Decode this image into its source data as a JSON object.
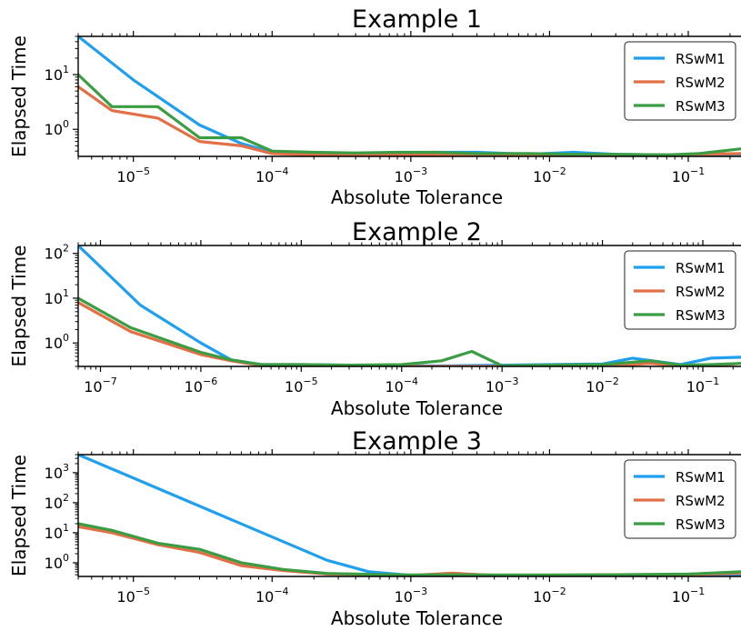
{
  "chart_data": [
    {
      "type": "line",
      "title": "Example 1",
      "xlabel": "Absolute Tolerance",
      "ylabel": "Elapsed Time",
      "xscale": "log",
      "yscale": "log",
      "xlim": [
        4e-06,
        0.24
      ],
      "ylim": [
        0.32,
        50
      ],
      "xticks": [
        {
          "value": 1e-05,
          "mant": "10",
          "exp": "−5"
        },
        {
          "value": 0.0001,
          "mant": "10",
          "exp": "−4"
        },
        {
          "value": 0.001,
          "mant": "10",
          "exp": "−3"
        },
        {
          "value": 0.01,
          "mant": "10",
          "exp": "−2"
        },
        {
          "value": 0.1,
          "mant": "10",
          "exp": "−1"
        }
      ],
      "yticks": [
        {
          "value": 1,
          "mant": "10",
          "exp": "0"
        },
        {
          "value": 10,
          "mant": "10",
          "exp": "1"
        }
      ],
      "legend_position": "top-right",
      "grid": false,
      "series": [
        {
          "name": "RSwM1",
          "color": "#1f9fef",
          "x": [
            4e-06,
            1e-05,
            3e-05,
            6e-05,
            0.0001,
            0.0002,
            0.0004,
            0.0008,
            0.0015,
            0.003,
            0.007,
            0.015,
            0.03,
            0.07,
            0.24
          ],
          "y": [
            50,
            8,
            1.2,
            0.55,
            0.38,
            0.36,
            0.36,
            0.37,
            0.38,
            0.38,
            0.35,
            0.38,
            0.35,
            0.34,
            0.35
          ]
        },
        {
          "name": "RSwM2",
          "color": "#e36f47",
          "x": [
            4e-06,
            7e-06,
            1.5e-05,
            3e-05,
            6e-05,
            0.0001,
            0.0002,
            0.0004,
            0.0008,
            0.0015,
            0.003,
            0.007,
            0.015,
            0.03,
            0.07,
            0.24
          ],
          "y": [
            6,
            2.2,
            1.6,
            0.6,
            0.5,
            0.36,
            0.34,
            0.34,
            0.34,
            0.34,
            0.34,
            0.34,
            0.34,
            0.34,
            0.34,
            0.36
          ]
        },
        {
          "name": "RSwM3",
          "color": "#3a9d43",
          "x": [
            4e-06,
            7e-06,
            1.5e-05,
            3e-05,
            6e-05,
            0.0001,
            0.0002,
            0.0004,
            0.0008,
            0.0015,
            0.003,
            0.007,
            0.015,
            0.03,
            0.07,
            0.12,
            0.24
          ],
          "y": [
            10,
            2.6,
            2.6,
            0.7,
            0.7,
            0.4,
            0.38,
            0.37,
            0.38,
            0.38,
            0.36,
            0.36,
            0.35,
            0.35,
            0.34,
            0.36,
            0.44
          ]
        }
      ]
    },
    {
      "type": "line",
      "title": "Example 2",
      "xlabel": "Absolute Tolerance",
      "ylabel": "Elapsed Time",
      "xscale": "log",
      "yscale": "log",
      "xlim": [
        6e-08,
        0.24
      ],
      "ylim": [
        0.3,
        150
      ],
      "xticks": [
        {
          "value": 1e-07,
          "mant": "10",
          "exp": "−7"
        },
        {
          "value": 1e-06,
          "mant": "10",
          "exp": "−6"
        },
        {
          "value": 1e-05,
          "mant": "10",
          "exp": "−5"
        },
        {
          "value": 0.0001,
          "mant": "10",
          "exp": "−4"
        },
        {
          "value": 0.001,
          "mant": "10",
          "exp": "−3"
        },
        {
          "value": 0.01,
          "mant": "10",
          "exp": "−2"
        },
        {
          "value": 0.1,
          "mant": "10",
          "exp": "−1"
        }
      ],
      "yticks": [
        {
          "value": 1,
          "mant": "10",
          "exp": "0"
        },
        {
          "value": 10,
          "mant": "10",
          "exp": "1"
        },
        {
          "value": 100,
          "mant": "10",
          "exp": "2"
        }
      ],
      "legend_position": "top-right",
      "grid": false,
      "series": [
        {
          "name": "RSwM1",
          "color": "#1f9fef",
          "x": [
            6e-08,
            2.5e-07,
            1e-06,
            2e-06,
            4e-06,
            1e-05,
            3e-05,
            0.0001,
            0.0003,
            0.001,
            0.003,
            0.01,
            0.02,
            0.06,
            0.12,
            0.24
          ],
          "y": [
            150,
            7,
            1.0,
            0.42,
            0.33,
            0.33,
            0.32,
            0.31,
            0.31,
            0.32,
            0.33,
            0.34,
            0.46,
            0.33,
            0.46,
            0.48
          ]
        },
        {
          "name": "RSwM2",
          "color": "#e36f47",
          "x": [
            6e-08,
            2e-07,
            1e-06,
            2e-06,
            4e-06,
            1e-05,
            3e-05,
            0.0001,
            0.0003,
            0.001,
            0.003,
            0.01,
            0.03,
            0.06,
            0.12,
            0.24
          ],
          "y": [
            8,
            1.8,
            0.55,
            0.4,
            0.31,
            0.3,
            0.3,
            0.3,
            0.3,
            0.3,
            0.3,
            0.3,
            0.35,
            0.31,
            0.31,
            0.35
          ]
        },
        {
          "name": "RSwM3",
          "color": "#3a9d43",
          "x": [
            6e-08,
            2e-07,
            1e-06,
            2e-06,
            4e-06,
            1e-05,
            3e-05,
            0.0001,
            0.00025,
            0.0005,
            0.001,
            0.003,
            0.01,
            0.03,
            0.06,
            0.12,
            0.24
          ],
          "y": [
            10,
            2.2,
            0.62,
            0.42,
            0.33,
            0.33,
            0.32,
            0.33,
            0.4,
            0.65,
            0.31,
            0.32,
            0.33,
            0.4,
            0.32,
            0.33,
            0.35
          ]
        }
      ]
    },
    {
      "type": "line",
      "title": "Example 3",
      "xlabel": "Absolute Tolerance",
      "ylabel": "Elapsed Time",
      "xscale": "log",
      "yscale": "log",
      "xlim": [
        4e-06,
        0.24
      ],
      "ylim": [
        0.35,
        4000
      ],
      "xticks": [
        {
          "value": 1e-05,
          "mant": "10",
          "exp": "−5"
        },
        {
          "value": 0.0001,
          "mant": "10",
          "exp": "−4"
        },
        {
          "value": 0.001,
          "mant": "10",
          "exp": "−3"
        },
        {
          "value": 0.01,
          "mant": "10",
          "exp": "−2"
        },
        {
          "value": 0.1,
          "mant": "10",
          "exp": "−1"
        }
      ],
      "yticks": [
        {
          "value": 1,
          "mant": "10",
          "exp": "0"
        },
        {
          "value": 10,
          "mant": "10",
          "exp": "1"
        },
        {
          "value": 100,
          "mant": "10",
          "exp": "2"
        },
        {
          "value": 1000,
          "mant": "10",
          "exp": "3"
        }
      ],
      "legend_position": "top-right",
      "grid": false,
      "series": [
        {
          "name": "RSwM1",
          "color": "#1f9fef",
          "x": [
            4e-06,
            0.00025,
            0.0005,
            0.001,
            0.003,
            0.01,
            0.03,
            0.1,
            0.24
          ],
          "y": [
            4000,
            1.2,
            0.5,
            0.38,
            0.37,
            0.36,
            0.37,
            0.37,
            0.36
          ]
        },
        {
          "name": "RSwM2",
          "color": "#e36f47",
          "x": [
            4e-06,
            7e-06,
            1.5e-05,
            3e-05,
            6e-05,
            0.00012,
            0.00025,
            0.0005,
            0.001,
            0.002,
            0.004,
            0.01,
            0.03,
            0.1,
            0.24
          ],
          "y": [
            16,
            10,
            4,
            2.2,
            0.8,
            0.55,
            0.42,
            0.4,
            0.38,
            0.45,
            0.38,
            0.38,
            0.4,
            0.4,
            0.45
          ]
        },
        {
          "name": "RSwM3",
          "color": "#3a9d43",
          "x": [
            4e-06,
            7e-06,
            1.5e-05,
            3e-05,
            6e-05,
            0.00012,
            0.00025,
            0.0005,
            0.001,
            0.002,
            0.004,
            0.01,
            0.03,
            0.1,
            0.24
          ],
          "y": [
            20,
            12,
            4.5,
            2.8,
            1.0,
            0.6,
            0.44,
            0.41,
            0.39,
            0.4,
            0.39,
            0.39,
            0.4,
            0.42,
            0.5
          ]
        }
      ]
    }
  ]
}
